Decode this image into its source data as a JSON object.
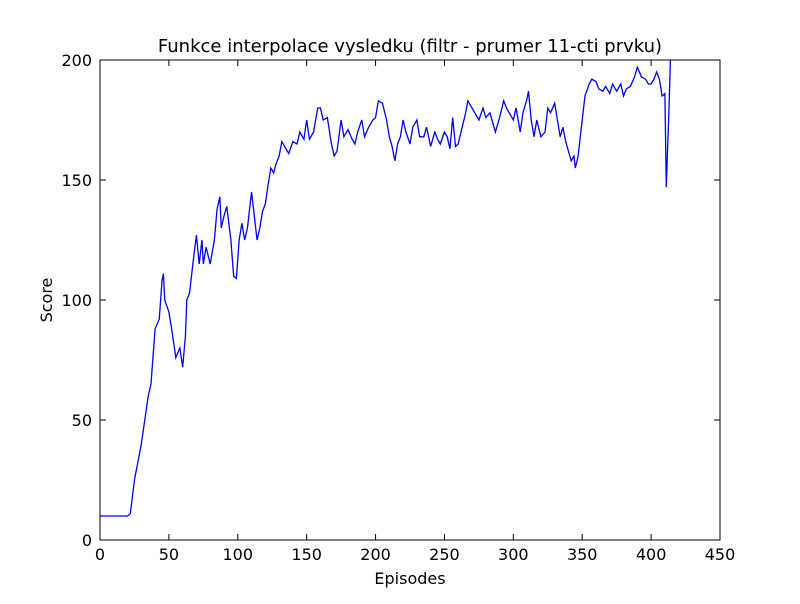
{
  "chart_data": {
    "type": "line",
    "title": "Funkce interpolace vysledku  (filtr - prumer 11-cti prvku)",
    "x_label": "Episodes",
    "y_label": "Score",
    "xlim": [
      0,
      450
    ],
    "ylim": [
      0,
      200
    ],
    "xticks": [
      0,
      50,
      100,
      150,
      200,
      250,
      300,
      350,
      400,
      450
    ],
    "yticks": [
      0,
      50,
      100,
      150,
      200
    ],
    "series": [
      {
        "color": "#0000ff",
        "x": [
          0,
          5,
          10,
          15,
          20,
          22,
          25,
          30,
          35,
          37,
          40,
          43,
          45,
          46,
          47,
          50,
          52,
          55,
          58,
          60,
          62,
          63,
          65,
          68,
          70,
          72,
          74,
          75,
          77,
          80,
          83,
          85,
          87,
          88,
          90,
          92,
          95,
          97,
          99,
          101,
          103,
          105,
          107,
          110,
          112,
          114,
          116,
          118,
          120,
          122,
          124,
          126,
          128,
          130,
          132,
          135,
          137,
          140,
          143,
          145,
          148,
          150,
          152,
          155,
          158,
          160,
          162,
          165,
          168,
          170,
          172,
          175,
          177,
          180,
          183,
          185,
          187,
          190,
          192,
          195,
          198,
          200,
          202,
          205,
          208,
          210,
          212,
          214,
          216,
          218,
          220,
          222,
          225,
          227,
          230,
          232,
          235,
          237,
          240,
          243,
          245,
          247,
          250,
          252,
          254,
          256,
          258,
          260,
          262,
          265,
          267,
          270,
          272,
          275,
          278,
          280,
          283,
          285,
          287,
          290,
          293,
          295,
          297,
          300,
          302,
          305,
          307,
          310,
          311,
          313,
          315,
          317,
          320,
          323,
          325,
          327,
          330,
          332,
          334,
          336,
          338,
          340,
          342,
          344,
          345,
          347,
          350,
          352,
          355,
          357,
          360,
          362,
          365,
          367,
          370,
          372,
          375,
          378,
          380,
          382,
          385,
          388,
          390,
          393,
          396,
          398,
          400,
          402,
          404,
          406,
          408,
          410,
          411,
          413,
          414
        ],
        "values": [
          10,
          10,
          10,
          10,
          10,
          11,
          25,
          40,
          60,
          65,
          88,
          92,
          108,
          111,
          100,
          95,
          88,
          76,
          80,
          72,
          85,
          100,
          103,
          118,
          127,
          115,
          125,
          115,
          122,
          115,
          125,
          138,
          143,
          130,
          135,
          139,
          125,
          110,
          109,
          125,
          132,
          125,
          130,
          145,
          135,
          125,
          130,
          137,
          140,
          148,
          155,
          153,
          157,
          160,
          166,
          163,
          161,
          166,
          165,
          170,
          167,
          175,
          167,
          170,
          180,
          180,
          175,
          176,
          165,
          160,
          162,
          175,
          168,
          171,
          167,
          165,
          170,
          175,
          168,
          172,
          175,
          176,
          183,
          182,
          175,
          168,
          164,
          158,
          165,
          168,
          175,
          170,
          165,
          172,
          175,
          168,
          168,
          172,
          164,
          170,
          167,
          165,
          170,
          168,
          163,
          176,
          164,
          165,
          170,
          177,
          183,
          180,
          178,
          175,
          180,
          176,
          178,
          174,
          170,
          176,
          183,
          180,
          178,
          175,
          180,
          170,
          178,
          184,
          187,
          175,
          168,
          175,
          168,
          170,
          180,
          178,
          182,
          175,
          168,
          172,
          166,
          162,
          158,
          160,
          155,
          160,
          175,
          185,
          190,
          192,
          191,
          188,
          187,
          189,
          186,
          190,
          187,
          190,
          185,
          188,
          189,
          193,
          197,
          193,
          192,
          190,
          190,
          192,
          195,
          192,
          185,
          186,
          147,
          180,
          200
        ]
      }
    ]
  }
}
